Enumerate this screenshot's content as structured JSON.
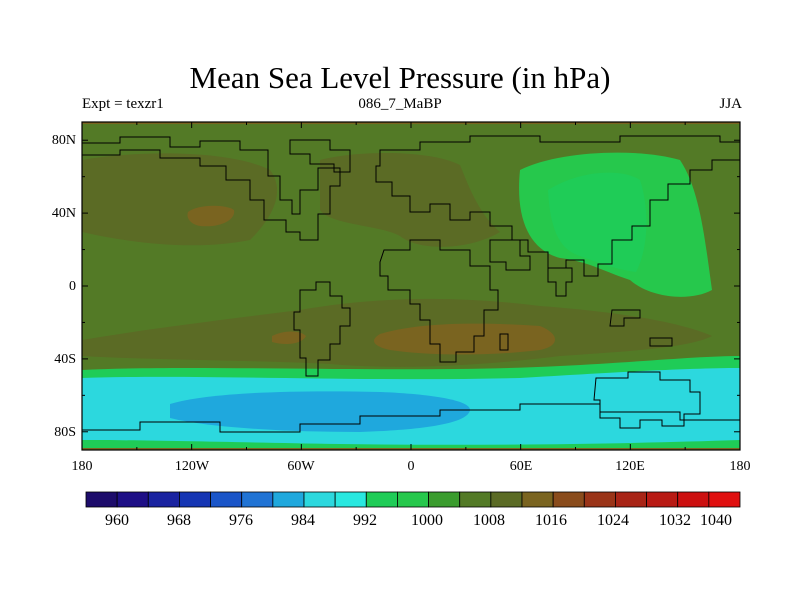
{
  "header": {
    "title": "Mean Sea Level Pressure (in hPa)",
    "left_label": "Expt = texzr1",
    "center_label": "086_7_MaBP",
    "right_label": "JJA"
  },
  "axes": {
    "y_ticks": [
      "80N",
      "40N",
      "0",
      "40S",
      "80S"
    ],
    "x_ticks": [
      "180",
      "120W",
      "60W",
      "0",
      "60E",
      "120E",
      "180"
    ]
  },
  "colorbar": {
    "labels": [
      "960",
      "968",
      "976",
      "984",
      "992",
      "1000",
      "1008",
      "1016",
      "1024",
      "1032",
      "1040"
    ],
    "colors": [
      "#1d0c6b",
      "#1e0f86",
      "#1a23a0",
      "#1535b3",
      "#1a55c8",
      "#2073d4",
      "#1fa8dd",
      "#2cd8de",
      "#29e8e0",
      "#1fcc57",
      "#26c84c",
      "#3a9c2e",
      "#537a26",
      "#5b6b25",
      "#7a6420",
      "#8a4c1c",
      "#9a3418",
      "#a82416",
      "#b81a14",
      "#cc1010",
      "#e01010"
    ]
  },
  "chart_data": {
    "type": "filled-contour-map",
    "title": "Mean Sea Level Pressure (in hPa)",
    "experiment": "Expt = texzr1",
    "period": "086_7_MaBP",
    "season": "JJA",
    "units": "hPa",
    "lon_range": [
      -180,
      180
    ],
    "lat_range": [
      -90,
      90
    ],
    "contour_levels": [
      960,
      964,
      968,
      972,
      976,
      980,
      984,
      988,
      992,
      996,
      1000,
      1004,
      1008,
      1012,
      1016,
      1020,
      1024,
      1028,
      1032,
      1036,
      1040
    ],
    "regions": [
      {
        "name": "background",
        "value_hPa": 1004
      },
      {
        "name": "north-pacific-high",
        "value_hPa": 1010
      },
      {
        "name": "north-atlantic-high",
        "value_hPa": 1010
      },
      {
        "name": "north-pacific-high-core",
        "value_hPa": 1014
      },
      {
        "name": "asian-low",
        "value_hPa": 996
      },
      {
        "name": "asian-low-core",
        "value_hPa": 992
      },
      {
        "name": "southern-subtropical-high",
        "value_hPa": 1010
      },
      {
        "name": "southern-high-core",
        "value_hPa": 1014
      },
      {
        "name": "southern-ocean-trough",
        "value_hPa": 994
      },
      {
        "name": "southern-ocean-trough-mid",
        "value_hPa": 986
      },
      {
        "name": "southern-ocean-trough-core",
        "value_hPa": 980
      }
    ]
  }
}
